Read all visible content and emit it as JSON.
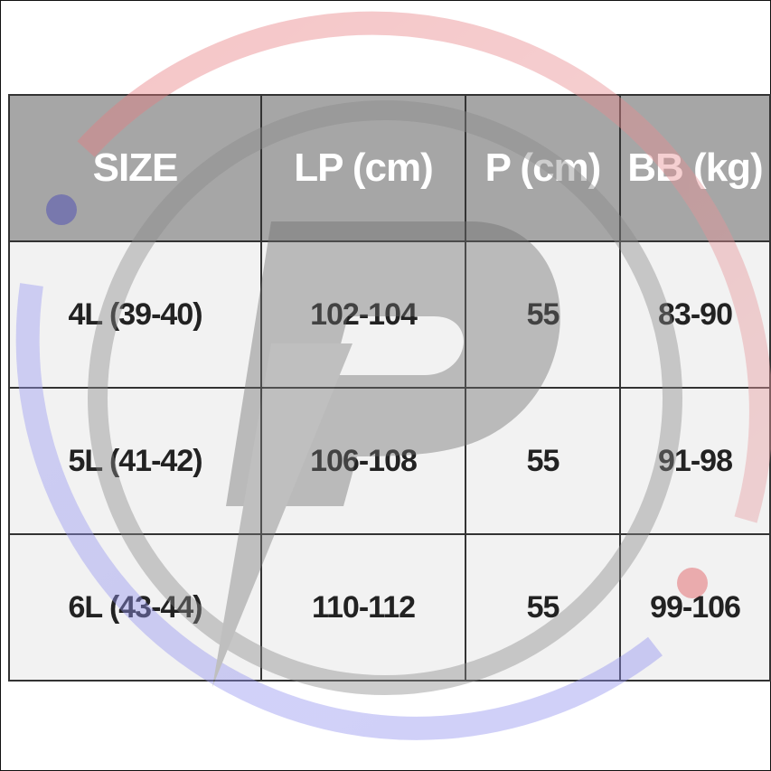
{
  "table": {
    "headers": [
      "SIZE",
      "LP (cm)",
      "P (cm)",
      "BB (kg)"
    ],
    "rows": [
      [
        "4L (39-40)",
        "102-104",
        "55",
        "83-90"
      ],
      [
        "5L (41-42)",
        "106-108",
        "55",
        "91-98"
      ],
      [
        "6L (43-44)",
        "110-112",
        "55",
        "99-106"
      ]
    ]
  },
  "colors": {
    "header_bg": "#a6a6a6",
    "header_text": "#ffffff",
    "cell_bg": "#f2f2f2",
    "cell_text": "#222222",
    "watermark_red": "#e8787c",
    "watermark_blue": "#8f8ff0",
    "watermark_gray": "#9e9e9e"
  },
  "watermark": {
    "icon": "p-logo-watermark"
  }
}
